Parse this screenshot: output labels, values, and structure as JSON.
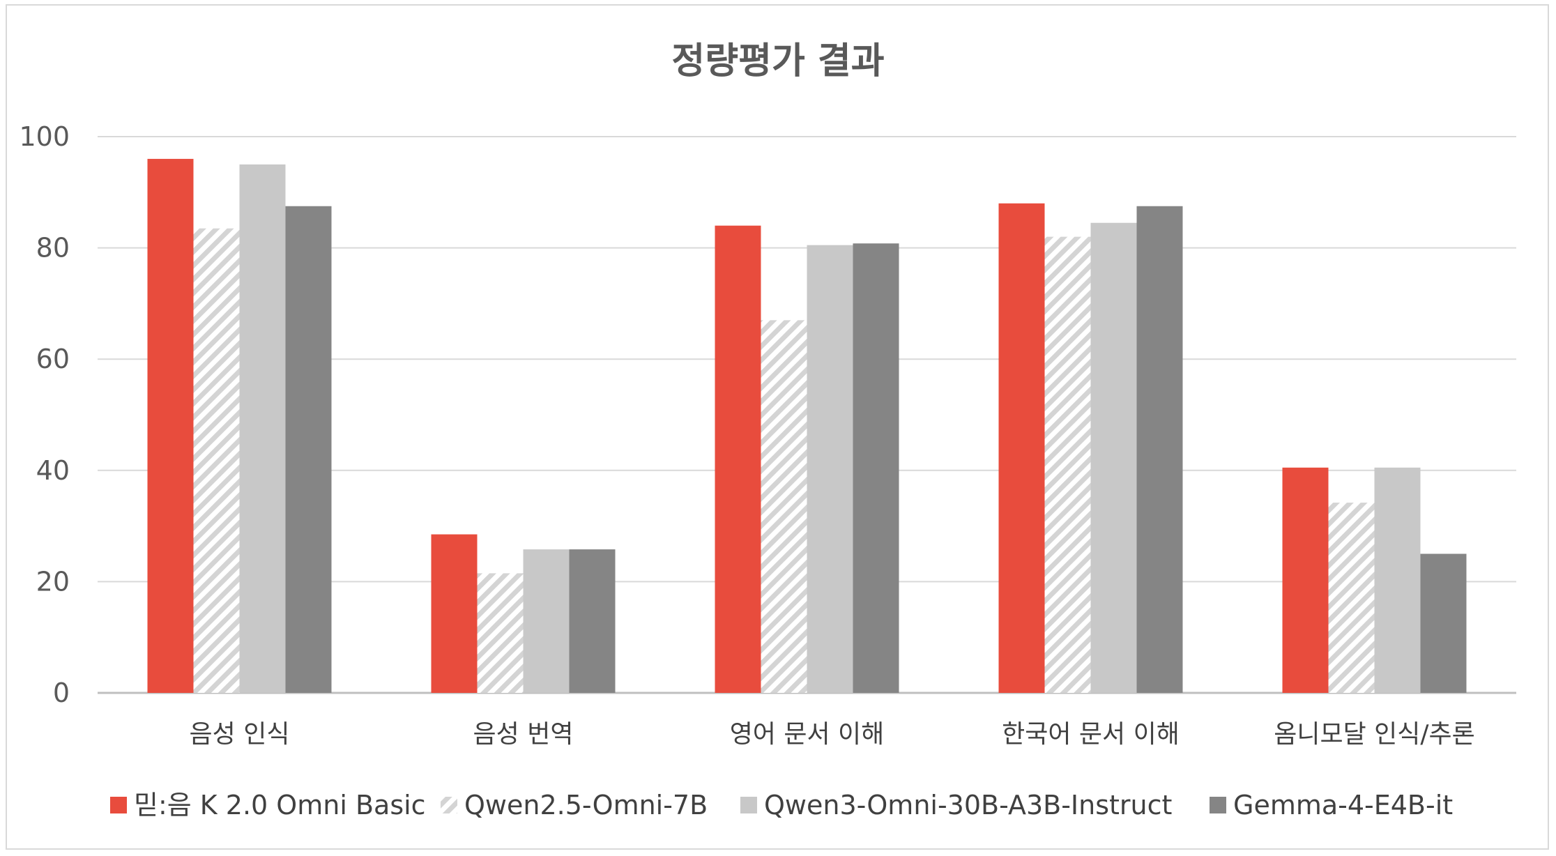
{
  "chart_data": {
    "type": "bar",
    "title": "정량평가 결과",
    "xlabel": "",
    "ylabel": "",
    "ylim": [
      0,
      100
    ],
    "yticks": [
      "0",
      "20",
      "40",
      "60",
      "80",
      "100"
    ],
    "grid": true,
    "legend_position": "bottom",
    "categories": [
      "음성 인식",
      "음성 번역",
      "영어 문서 이해",
      "한국어 문서 이해",
      "옴니모달 인식/추론"
    ],
    "series": [
      {
        "name": "믿:음 K 2.0 Omni Basic",
        "color": "#e84c3d",
        "fill": "solid",
        "values": [
          96,
          28.5,
          84,
          88,
          40.5
        ]
      },
      {
        "name": "Qwen2.5-Omni-7B",
        "color": "#d4d4d4",
        "fill": "hatch",
        "values": [
          83.5,
          21.5,
          67,
          82,
          34.2
        ]
      },
      {
        "name": "Qwen3-Omni-30B-A3B-Instruct",
        "color": "#c8c8c8",
        "fill": "solid",
        "values": [
          95,
          25.8,
          80.5,
          84.5,
          40.5
        ]
      },
      {
        "name": "Gemma-4-E4B-it",
        "color": "#858585",
        "fill": "solid",
        "values": [
          87.5,
          25.8,
          80.8,
          87.5,
          25
        ]
      }
    ],
    "gridline_color": "#d9d9d9",
    "axis_color": "#bfbfbf"
  }
}
